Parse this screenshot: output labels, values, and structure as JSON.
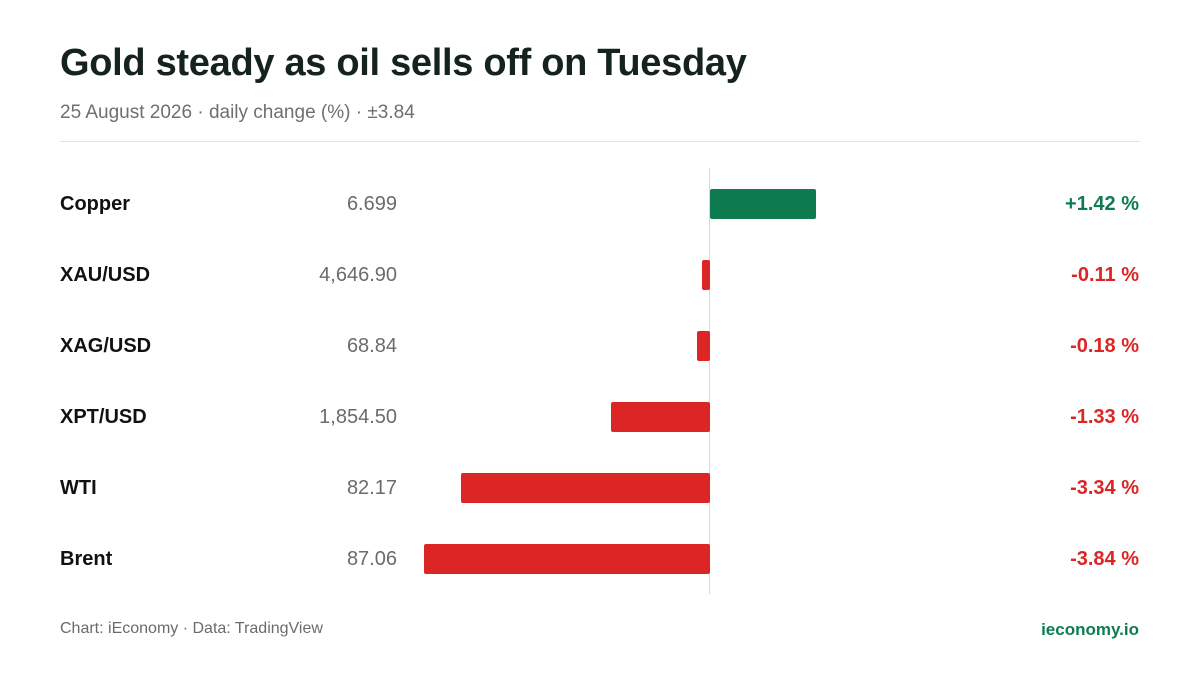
{
  "title": "Gold steady as oil sells off on Tuesday",
  "subtitle": "25 August 2026 · daily change (%) · ±3.84",
  "footer": {
    "source": "Chart: iEconomy · Data: TradingView",
    "brand": "ieconomy.io"
  },
  "colors": {
    "positive": "#0f7b50",
    "negative": "#dc2626",
    "brand": "#0f7b50"
  },
  "chart_data": {
    "type": "bar",
    "orientation": "horizontal",
    "xlim": [
      -3.84,
      3.84
    ],
    "grid": false,
    "categories": [
      "Copper",
      "XAU/USD",
      "XAG/USD",
      "XPT/USD",
      "WTI",
      "Brent"
    ],
    "rows": [
      {
        "name": "Copper",
        "price": "6.699",
        "change": 1.42,
        "change_label": "+1.42 %"
      },
      {
        "name": "XAU/USD",
        "price": "4,646.90",
        "change": -0.11,
        "change_label": "-0.11 %"
      },
      {
        "name": "XAG/USD",
        "price": "68.84",
        "change": -0.18,
        "change_label": "-0.18 %"
      },
      {
        "name": "XPT/USD",
        "price": "1,854.50",
        "change": -1.33,
        "change_label": "-1.33 %"
      },
      {
        "name": "WTI",
        "price": "82.17",
        "change": -3.34,
        "change_label": "-3.34 %"
      },
      {
        "name": "Brent",
        "price": "87.06",
        "change": -3.84,
        "change_label": "-3.84 %"
      }
    ]
  }
}
